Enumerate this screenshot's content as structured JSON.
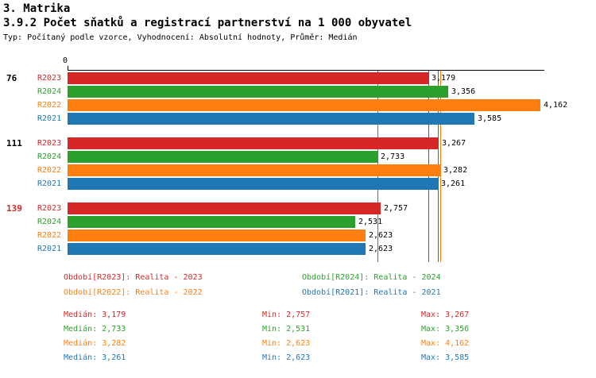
{
  "header": {
    "title": "3. Matrika",
    "subtitle": "3.9.2 Počet sňatků a registrací partnerství na 1 000 obyvatel",
    "meta": "Typ: Počítaný podle vzorce, Vyhodnocení: Absolutní hodnoty, Průměr: Medián"
  },
  "chart_data": {
    "type": "bar",
    "orientation": "horizontal",
    "axis": {
      "origin_label": "0",
      "x_min": 0,
      "x_max": 4.2,
      "position": "top"
    },
    "series": [
      {
        "id": "R2023",
        "label": "R2023",
        "color": "#d62728"
      },
      {
        "id": "R2024",
        "label": "R2024",
        "color": "#2ca02c"
      },
      {
        "id": "R2022",
        "label": "R2022",
        "color": "#ff7f0e"
      },
      {
        "id": "R2021",
        "label": "R2021",
        "color": "#1f77b4"
      }
    ],
    "groups": [
      {
        "label": "76",
        "highlight": false,
        "values": [
          3.179,
          3.356,
          4.162,
          3.585
        ],
        "value_labels": [
          "3,179",
          "3,356",
          "4,162",
          "3,585"
        ]
      },
      {
        "label": "111",
        "highlight": false,
        "values": [
          3.267,
          2.733,
          3.282,
          3.261
        ],
        "value_labels": [
          "3,267",
          "2,733",
          "3,282",
          "3,261"
        ]
      },
      {
        "label": "139",
        "highlight": true,
        "values": [
          2.757,
          2.531,
          2.623,
          2.623
        ],
        "value_labels": [
          "2,757",
          "2,531",
          "2,623",
          "2,623"
        ]
      }
    ],
    "median_lines": [
      {
        "value": 3.179,
        "color": "#d62728"
      },
      {
        "value": 2.733,
        "color": "#2ca02c"
      },
      {
        "value": 3.282,
        "color": "#ff7f0e"
      },
      {
        "value": 3.261,
        "color": "#1f77b4"
      }
    ]
  },
  "legend": {
    "items": [
      {
        "label": "Období[R2023]: Realita - 2023",
        "color": "#d62728"
      },
      {
        "label": "Období[R2024]: Realita - 2024",
        "color": "#2ca02c"
      },
      {
        "label": "Období[R2022]: Realita - 2022",
        "color": "#ff7f0e"
      },
      {
        "label": "Období[R2021]: Realita - 2021",
        "color": "#1f77b4"
      }
    ]
  },
  "stats": {
    "highlight_color": "#d62728",
    "rows": [
      {
        "median": "Medián: 3,179",
        "min": "Min: 2,757",
        "max": "Max: 3,267",
        "color": "#d62728"
      },
      {
        "median": "Medián: 2,733",
        "min": "Min: 2,531",
        "max": "Max: 3,356",
        "color": "#2ca02c"
      },
      {
        "median": "Medián: 3,282",
        "min": "Min: 2,623",
        "max": "Max: 4,162",
        "color": "#ff7f0e"
      },
      {
        "median": "Medián: 3,261",
        "min": "Min: 2,623",
        "max": "Max: 3,585",
        "color": "#1f77b4"
      }
    ]
  }
}
